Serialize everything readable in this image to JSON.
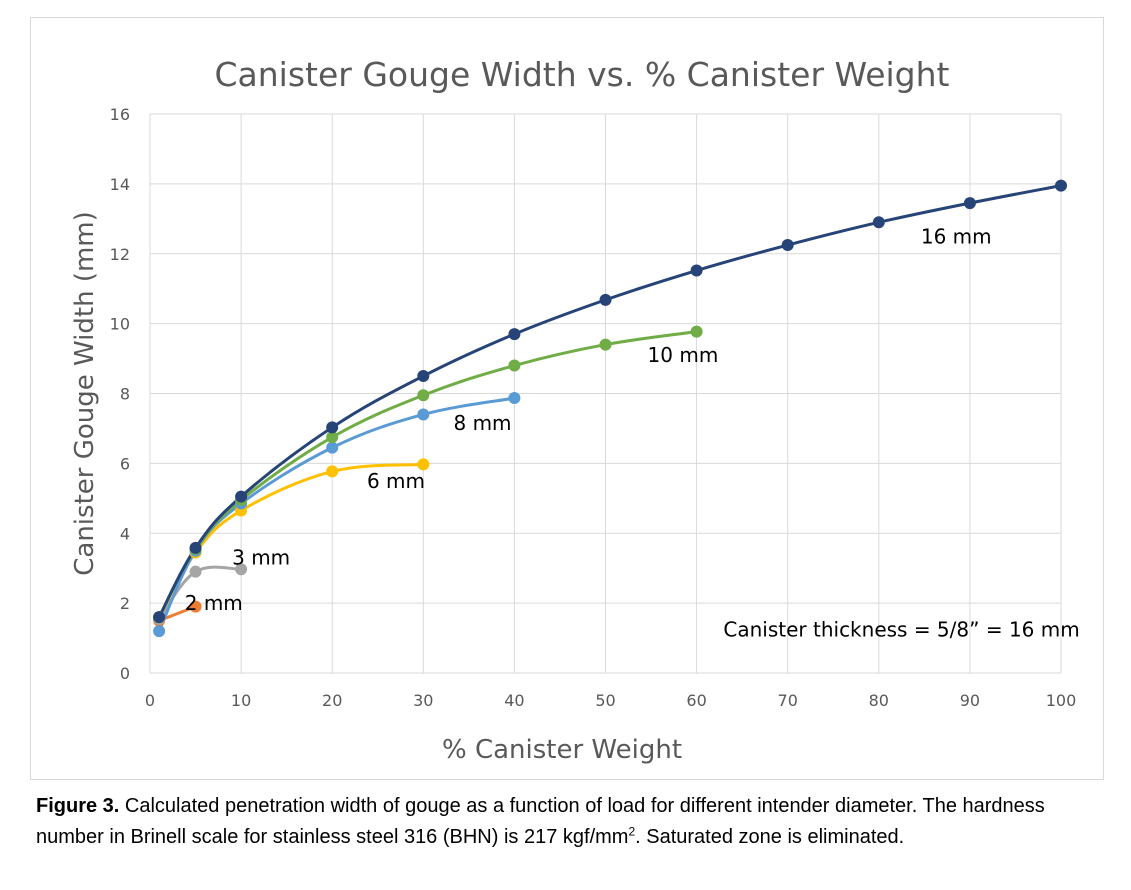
{
  "chart_data": {
    "type": "line",
    "title": "Canister Gouge Width vs. % Canister Weight",
    "xlabel": "% Canister Weight",
    "ylabel": "Canister Gouge Width (mm)",
    "xlim": [
      0,
      100
    ],
    "ylim": [
      0,
      16
    ],
    "xticks": [
      0,
      10,
      20,
      30,
      40,
      50,
      60,
      70,
      80,
      90,
      100
    ],
    "yticks": [
      0,
      2,
      4,
      6,
      8,
      10,
      12,
      14,
      16
    ],
    "grid": true,
    "series": [
      {
        "name": "2 mm",
        "color": "#ed7d31",
        "x": [
          1,
          5
        ],
        "y": [
          1.5,
          1.9
        ]
      },
      {
        "name": "3 mm",
        "color": "#a5a5a5",
        "x": [
          1,
          5,
          10
        ],
        "y": [
          1.55,
          2.9,
          2.97
        ]
      },
      {
        "name": "6 mm",
        "color": "#ffc000",
        "x": [
          1,
          5,
          10,
          20,
          30
        ],
        "y": [
          1.6,
          3.45,
          4.65,
          5.77,
          5.97
        ]
      },
      {
        "name": "8 mm",
        "color": "#5b9bd5",
        "x": [
          1,
          5,
          10,
          20,
          30,
          40
        ],
        "y": [
          1.2,
          3.5,
          4.85,
          6.45,
          7.4,
          7.87
        ]
      },
      {
        "name": "10 mm",
        "color": "#70ad47",
        "x": [
          1,
          5,
          10,
          20,
          30,
          40,
          50,
          60
        ],
        "y": [
          1.6,
          3.55,
          4.95,
          6.75,
          7.95,
          8.8,
          9.4,
          9.77
        ]
      },
      {
        "name": "16 mm",
        "color": "#264478",
        "x": [
          1,
          5,
          10,
          20,
          30,
          40,
          50,
          60,
          70,
          80,
          90,
          100
        ],
        "y": [
          1.6,
          3.58,
          5.05,
          7.03,
          8.5,
          9.7,
          10.68,
          11.52,
          12.25,
          12.9,
          13.45,
          13.95
        ]
      }
    ],
    "annotations": [
      {
        "text": "16 mm",
        "x": 88.5,
        "y": 12.3
      },
      {
        "text": "10 mm",
        "x": 58.5,
        "y": 8.9
      },
      {
        "text": "8 mm",
        "x": 36.5,
        "y": 6.95
      },
      {
        "text": "6 mm",
        "x": 27,
        "y": 5.3
      },
      {
        "text": "3 mm",
        "x": 12.2,
        "y": 3.1
      },
      {
        "text": "2 mm",
        "x": 7,
        "y": 1.8
      },
      {
        "text": "Canister thickness = 5/8” = 16 mm",
        "x": 82.5,
        "y": 1.05
      }
    ]
  },
  "caption": {
    "label": "Figure 3.",
    "text1": " Calculated penetration width of gouge as a function of load for different intender diameter. The hardness number in Brinell scale for stainless steel 316 (BHN) is 217 kgf/mm",
    "sup": "2",
    "text2": ". Saturated zone is eliminated."
  }
}
